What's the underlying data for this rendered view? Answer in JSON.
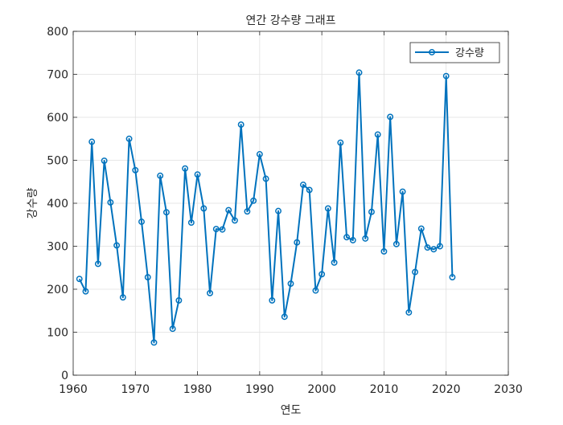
{
  "chart_data": {
    "type": "line",
    "title": "연간 강수량 그래프",
    "xlabel": "연도",
    "ylabel": "강수량",
    "xlim": [
      1960,
      2030
    ],
    "ylim": [
      0,
      800
    ],
    "xticks": [
      1960,
      1970,
      1980,
      1990,
      2000,
      2010,
      2020,
      2030
    ],
    "yticks": [
      0,
      100,
      200,
      300,
      400,
      500,
      600,
      700,
      800
    ],
    "grid": true,
    "legend_position": "top-right",
    "series": [
      {
        "name": "강수량",
        "color": "#0072bd",
        "marker": "circle",
        "x": [
          1961,
          1962,
          1963,
          1964,
          1965,
          1966,
          1967,
          1968,
          1969,
          1970,
          1971,
          1972,
          1973,
          1974,
          1975,
          1976,
          1977,
          1978,
          1979,
          1980,
          1981,
          1982,
          1983,
          1984,
          1985,
          1986,
          1987,
          1988,
          1989,
          1990,
          1991,
          1992,
          1993,
          1994,
          1995,
          1996,
          1997,
          1998,
          1999,
          2000,
          2001,
          2002,
          2003,
          2004,
          2005,
          2006,
          2007,
          2008,
          2009,
          2010,
          2011,
          2012,
          2013,
          2014,
          2015,
          2016,
          2017,
          2018,
          2019,
          2020,
          2021
        ],
        "values": [
          224,
          195,
          543,
          259,
          499,
          402,
          302,
          181,
          550,
          477,
          357,
          228,
          76,
          464,
          379,
          108,
          174,
          481,
          355,
          467,
          388,
          191,
          340,
          339,
          384,
          360,
          583,
          381,
          406,
          514,
          457,
          174,
          382,
          136,
          213,
          309,
          443,
          431,
          197,
          235,
          388,
          262,
          541,
          321,
          314,
          704,
          318,
          380,
          560,
          288,
          601,
          305,
          427,
          146,
          240,
          341,
          297,
          293,
          300,
          696,
          228
        ]
      }
    ]
  }
}
